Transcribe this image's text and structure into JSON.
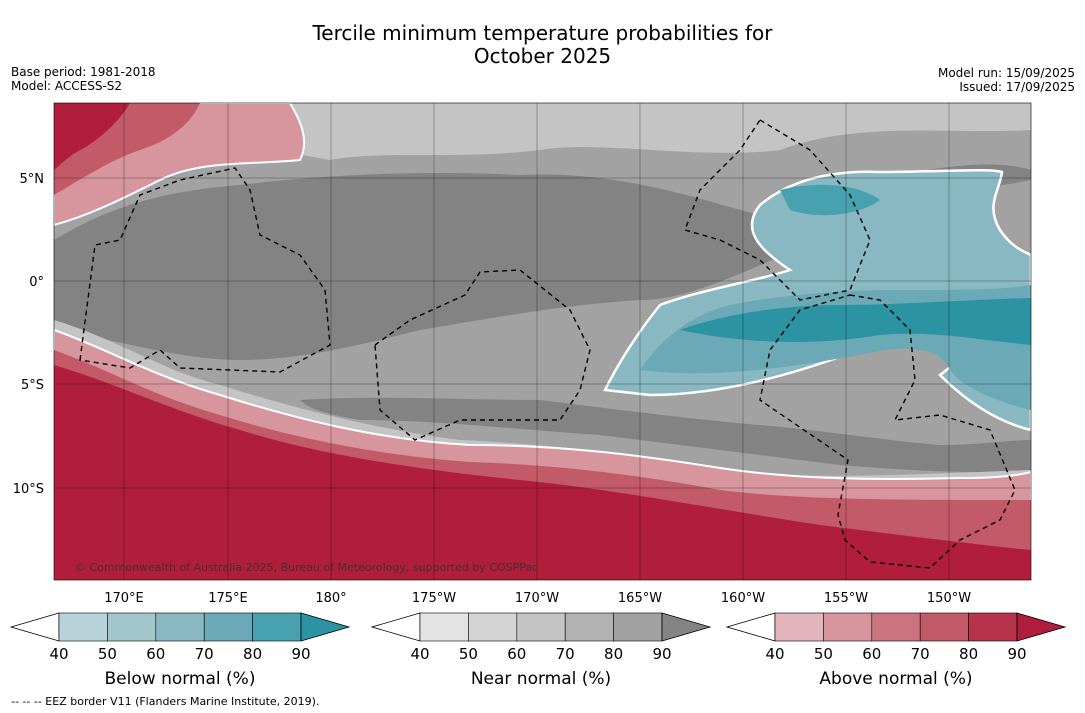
{
  "title": {
    "line1": "Tercile minimum temperature probabilities for",
    "line2": "October 2025"
  },
  "meta": {
    "base_period": "Base period: 1981-2018",
    "model": "Model: ACCESS-S2",
    "model_run": "Model run: 15/09/2025",
    "issued": "Issued: 17/09/2025"
  },
  "map": {
    "lat_labels": [
      "5°N",
      "0°",
      "5°S",
      "10°S"
    ],
    "lon_labels": [
      "170°E",
      "175°E",
      "180°",
      "175°W",
      "170°W",
      "165°W",
      "160°W",
      "155°W",
      "150°W"
    ],
    "credit": "© Commonwealth of Australia 2025, Bureau of Meteorology, supported by COSPPac"
  },
  "colorbars": [
    {
      "label": "Below normal (%)",
      "ticks": [
        "40",
        "50",
        "60",
        "70",
        "80",
        "90"
      ],
      "colors": [
        "#b9d3da",
        "#a3c6cd",
        "#89b8c2",
        "#6aa9b5",
        "#48a1ae",
        "#2b93a2"
      ]
    },
    {
      "label": "Near normal (%)",
      "ticks": [
        "40",
        "50",
        "60",
        "70",
        "80",
        "90"
      ],
      "colors": [
        "#e4e4e4",
        "#d4d4d4",
        "#c4c4c4",
        "#b2b2b2",
        "#a2a2a2",
        "#838383"
      ]
    },
    {
      "label": "Above normal (%)",
      "ticks": [
        "40",
        "50",
        "60",
        "70",
        "80",
        "90"
      ],
      "colors": [
        "#e1b5bb",
        "#d7959d",
        "#cb7480",
        "#c25a67",
        "#b6334a",
        "#b01e3b"
      ]
    }
  ],
  "footnote": "--  --  -- EEZ border V11 (Flanders Marine Institute, 2019)."
}
